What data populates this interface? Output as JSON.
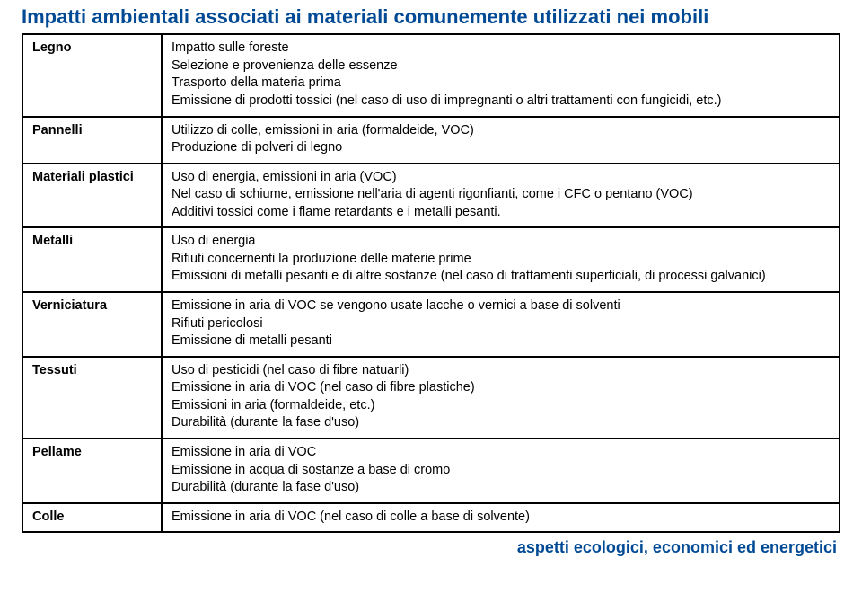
{
  "title": "Impatti ambientali associati ai materiali comunemente utilizzati nei mobili",
  "footer": "aspetti ecologici, economici ed energetici",
  "rows": [
    {
      "label": "Legno",
      "lines": [
        "Impatto sulle foreste",
        "Selezione e provenienza delle essenze",
        "Trasporto della materia prima",
        "Emissione di prodotti tossici (nel caso di uso di impregnanti o altri trattamenti con fungicidi, etc.)"
      ]
    },
    {
      "label": "Pannelli",
      "lines": [
        "Utilizzo di colle, emissioni in aria (formaldeide, VOC)",
        "Produzione di polveri di legno"
      ]
    },
    {
      "label": "Materiali plastici",
      "lines": [
        "Uso di energia, emissioni in aria (VOC)",
        "Nel caso di schiume, emissione nell'aria di agenti rigonfianti, come i CFC o pentano (VOC)",
        "Additivi tossici come i flame retardants e i metalli pesanti."
      ]
    },
    {
      "label": "Metalli",
      "lines": [
        "Uso di energia",
        "Rifiuti concernenti la produzione delle materie prime",
        "Emissioni di metalli pesanti e di altre sostanze (nel caso di trattamenti superficiali, di processi galvanici)"
      ]
    },
    {
      "label": "Verniciatura",
      "lines": [
        "Emissione in aria di VOC se vengono usate lacche o vernici a base di solventi",
        "Rifiuti pericolosi",
        "Emissione di metalli pesanti"
      ]
    },
    {
      "label": "Tessuti",
      "lines": [
        "Uso di pesticidi (nel caso di fibre natuarli)",
        "Emissione in aria di VOC (nel caso di fibre plastiche)",
        "Emissioni in aria (formaldeide, etc.)",
        "Durabilità (durante la fase d'uso)"
      ]
    },
    {
      "label": "Pellame",
      "lines": [
        "Emissione in aria di VOC",
        "Emissione in acqua di sostanze a base di cromo",
        "Durabilità (durante la fase d'uso)"
      ]
    },
    {
      "label": "Colle",
      "lines": [
        "Emissione in aria di VOC (nel caso di colle a base di solvente)"
      ]
    }
  ]
}
